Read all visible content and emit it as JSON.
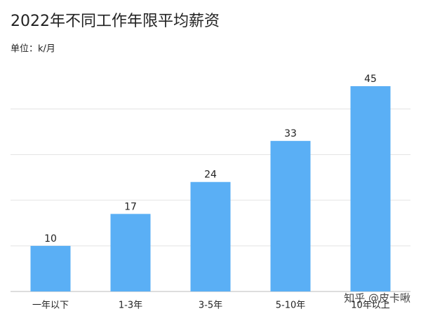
{
  "chart_data": {
    "type": "bar",
    "title": "2022年不同工作年限平均薪资",
    "subtitle": "单位：k/月",
    "categories": [
      "一年以下",
      "1-3年",
      "3-5年",
      "5-10年",
      "10年以上"
    ],
    "values": [
      10,
      17,
      24,
      33,
      45
    ],
    "color": "#5aaff5",
    "ylim": [
      0,
      45
    ],
    "yticks": [
      0,
      10,
      20,
      30,
      40
    ],
    "grid": true,
    "watermark": "知乎 @皮卡啾"
  }
}
